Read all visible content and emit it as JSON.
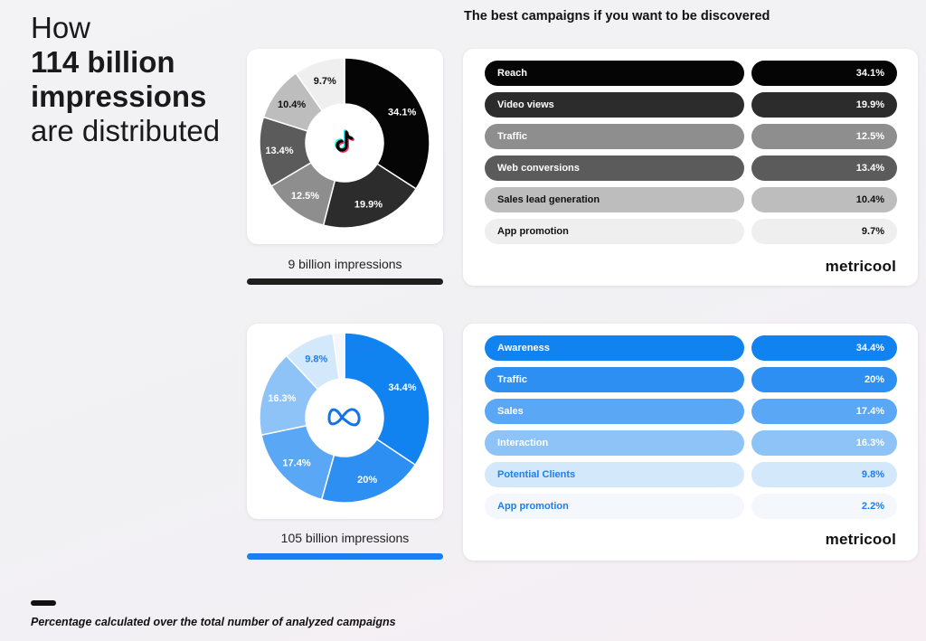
{
  "heading": {
    "line1": "How",
    "line2": "114 billion",
    "line3": "impressions",
    "line4": "are distributed"
  },
  "title": "The best campaigns if you want to be discovered",
  "brand": "metricool",
  "footnote": "Percentage calculated over the total number of analyzed campaigns",
  "tiktok": {
    "icon": "tiktok-icon",
    "impressions": "9 billion impressions",
    "underline_color": "#1f1f1f"
  },
  "meta": {
    "icon": "meta-infinity-icon",
    "impressions": "105 billion impressions",
    "underline_color": "#1a7ff0"
  },
  "chart_data": [
    {
      "type": "pie",
      "name": "TikTok",
      "categories": [
        "Reach",
        "Video views",
        "Traffic",
        "Web conversions",
        "Sales lead generation",
        "App promotion"
      ],
      "values": [
        34.1,
        19.9,
        12.5,
        13.4,
        10.4,
        9.7
      ],
      "labels": [
        "34.1%",
        "19.9%",
        "12.5%",
        "13.4%",
        "10.4%",
        "9.7%"
      ],
      "colors": [
        "#050505",
        "#2c2c2c",
        "#8e8e8e",
        "#5b5b5b",
        "#bdbdbd",
        "#efefef"
      ],
      "text_colors": [
        "#ffffff",
        "#ffffff",
        "#ffffff",
        "#ffffff",
        "#111111",
        "#111111"
      ]
    },
    {
      "type": "pie",
      "name": "Meta",
      "categories": [
        "Awareness",
        "Traffic",
        "Sales",
        "Interaction",
        "Potential Clients",
        "App promotion"
      ],
      "values": [
        34.4,
        20,
        17.4,
        16.3,
        9.8,
        2.2
      ],
      "labels": [
        "34.4%",
        "20%",
        "17.4%",
        "16.3%",
        "9.8%",
        "2.2%"
      ],
      "colors": [
        "#1183f0",
        "#2e8ff2",
        "#5aa7f5",
        "#8ec3f8",
        "#d4e8fc",
        "#f4f8fd"
      ],
      "text_colors": [
        "#ffffff",
        "#ffffff",
        "#ffffff",
        "#ffffff",
        "#1a7ff0",
        "#1a7ff0"
      ]
    }
  ]
}
